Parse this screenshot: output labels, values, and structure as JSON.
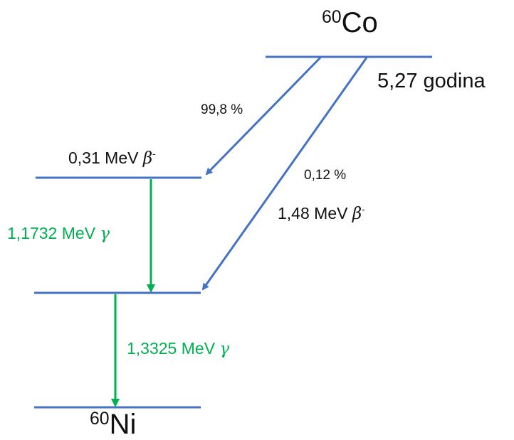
{
  "diagram": {
    "parent": {
      "mass_number": "60",
      "symbol": "Co",
      "half_life": "5,27 godina"
    },
    "daughter": {
      "mass_number": "60",
      "symbol": "Ni"
    },
    "beta_branches": [
      {
        "probability": "99,8 %",
        "energy": "0,31 MeV",
        "particle": "β",
        "charge": "-"
      },
      {
        "probability": "0,12 %",
        "energy": "1,48 MeV",
        "particle": "β",
        "charge": "-"
      }
    ],
    "gamma_transitions": [
      {
        "energy": "1,1732 MeV",
        "particle": "γ"
      },
      {
        "energy": "1,3325 MeV",
        "particle": "γ"
      }
    ],
    "colors": {
      "level_line": "#4472c4",
      "beta_arrow": "#4472c4",
      "gamma_arrow": "#00b050",
      "gamma_text": "#00b050",
      "text": "#111111"
    }
  }
}
